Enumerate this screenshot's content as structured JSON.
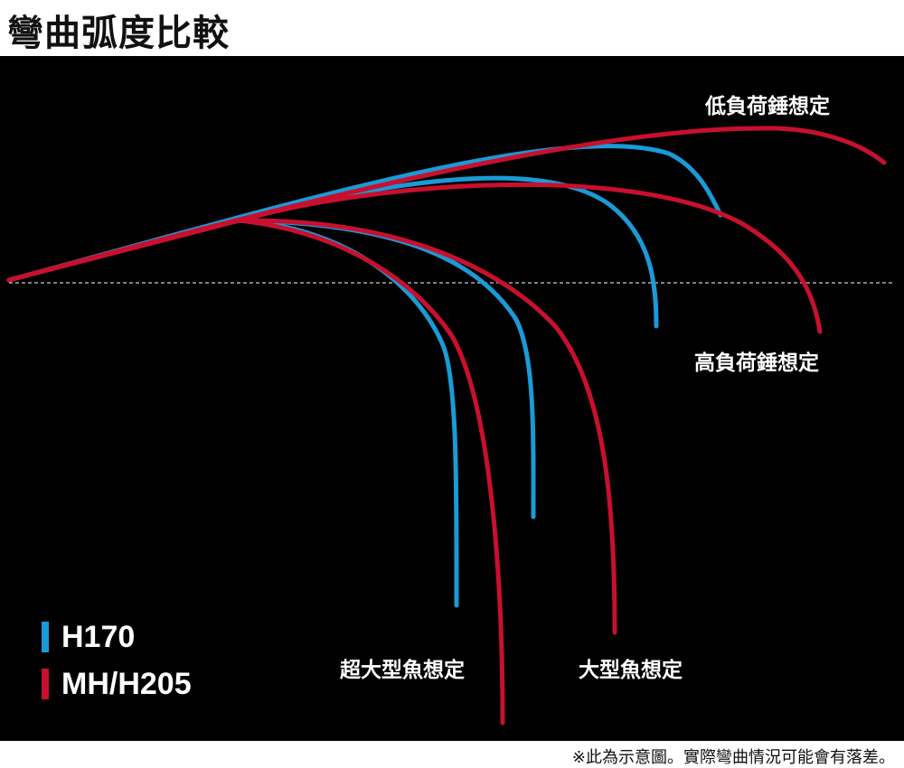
{
  "title": "彎曲弧度比較",
  "labels": {
    "low_load": "低負荷錘想定",
    "high_load": "高負荷錘想定",
    "xl_fish": "超大型魚想定",
    "large_fish": "大型魚想定"
  },
  "legend": [
    {
      "name": "H170",
      "color": "#1a9ad6"
    },
    {
      "name": "MH/H205",
      "color": "#c8102e"
    }
  ],
  "colors": {
    "blue": "#1a9ad6",
    "red": "#c8102e",
    "background": "#000000",
    "baseline": "#ffffff"
  },
  "footnote": "※此為示意圖。實際彎曲情況可能會有落差。"
}
